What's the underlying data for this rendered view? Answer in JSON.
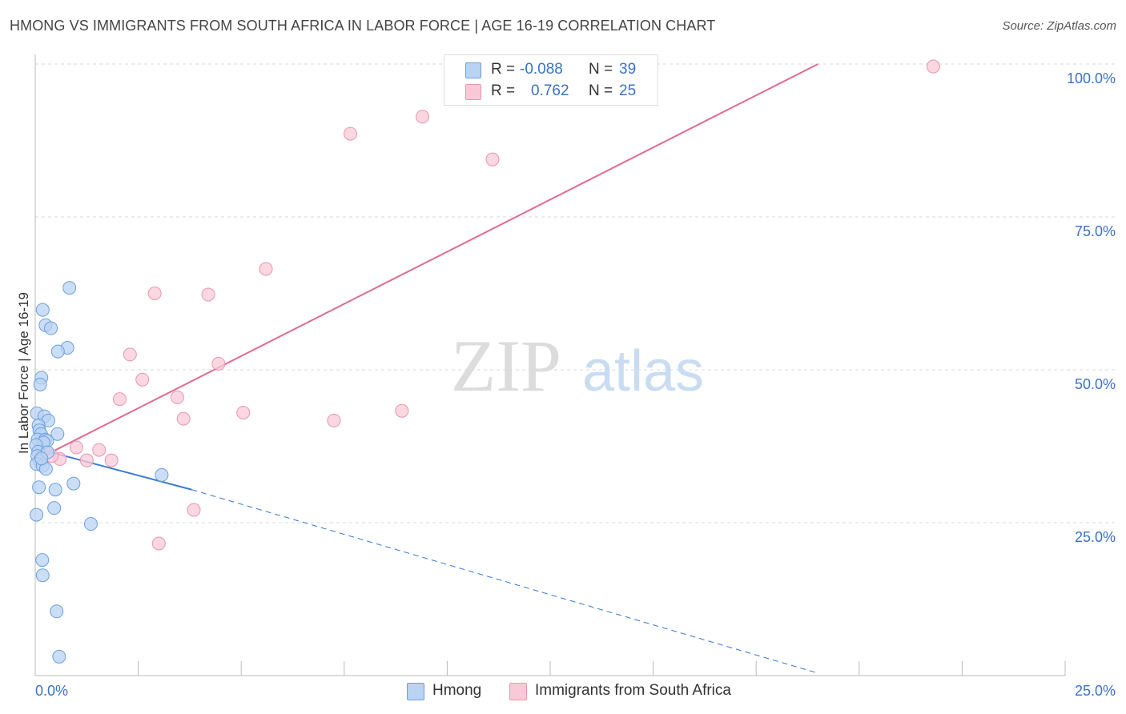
{
  "title": "HMONG VS IMMIGRANTS FROM SOUTH AFRICA IN LABOR FORCE | AGE 16-19 CORRELATION CHART",
  "source": "Source: ZipAtlas.com",
  "watermark": {
    "zip": "ZIP",
    "atlas": "atlas"
  },
  "colors": {
    "hmong_fill": "#b9d3f3",
    "hmong_stroke": "#6b9fdc",
    "hmong_line": "#3b7bd4",
    "sa_fill": "#f9c9d7",
    "sa_stroke": "#e995ae",
    "sa_line": "#e06a93",
    "axis_text": "#3a72c4",
    "grid": "#d9d9d9"
  },
  "legend": {
    "r_label": "R =",
    "n_label": "N =",
    "hmong": {
      "r": "-0.088",
      "n": "39"
    },
    "sa": {
      "r": "0.762",
      "n": "25"
    }
  },
  "chart_data": {
    "type": "scatter",
    "title": "HMONG VS IMMIGRANTS FROM SOUTH AFRICA IN LABOR FORCE | AGE 16-19 CORRELATION CHART",
    "xlabel": "",
    "ylabel": "In Labor Force | Age 16-19",
    "xlim": [
      0,
      25
    ],
    "ylim": [
      0,
      100
    ],
    "x_tick_labels": [
      "0.0%",
      "25.0%"
    ],
    "y_ticks": [
      25,
      50,
      75,
      100
    ],
    "y_tick_labels": [
      "25.0%",
      "50.0%",
      "75.0%",
      "100.0%"
    ],
    "grid": true,
    "series": [
      {
        "name": "Hmong",
        "r": -0.088,
        "n": 39,
        "points": [
          [
            0.83,
            63.4
          ],
          [
            0.18,
            59.8
          ],
          [
            0.25,
            57.3
          ],
          [
            0.38,
            56.8
          ],
          [
            0.78,
            53.6
          ],
          [
            0.55,
            53.0
          ],
          [
            0.15,
            48.7
          ],
          [
            0.12,
            47.6
          ],
          [
            0.04,
            42.9
          ],
          [
            0.22,
            42.4
          ],
          [
            0.32,
            41.7
          ],
          [
            0.08,
            40.9
          ],
          [
            0.1,
            40.1
          ],
          [
            0.14,
            39.5
          ],
          [
            0.54,
            39.5
          ],
          [
            0.06,
            38.6
          ],
          [
            0.24,
            38.6
          ],
          [
            0.29,
            38.4
          ],
          [
            0.2,
            38.1
          ],
          [
            0.02,
            37.7
          ],
          [
            0.07,
            36.6
          ],
          [
            0.05,
            35.9
          ],
          [
            0.11,
            35.1
          ],
          [
            0.03,
            34.6
          ],
          [
            0.18,
            34.3
          ],
          [
            0.26,
            33.8
          ],
          [
            3.07,
            32.8
          ],
          [
            0.93,
            31.4
          ],
          [
            0.09,
            30.8
          ],
          [
            0.49,
            30.4
          ],
          [
            0.46,
            27.4
          ],
          [
            0.03,
            26.3
          ],
          [
            1.35,
            24.8
          ],
          [
            0.17,
            18.9
          ],
          [
            0.18,
            16.4
          ],
          [
            0.52,
            10.5
          ],
          [
            0.58,
            3.1
          ],
          [
            0.3,
            36.5
          ],
          [
            0.15,
            35.5
          ]
        ],
        "trend_solid": [
          [
            0,
            37.2
          ],
          [
            3.8,
            30.4
          ]
        ],
        "trend_dashed": [
          [
            3.8,
            30.4
          ],
          [
            19.0,
            0.4
          ]
        ]
      },
      {
        "name": "Immigrants from South Africa",
        "r": 0.762,
        "n": 25,
        "points": [
          [
            21.8,
            99.6
          ],
          [
            9.4,
            91.4
          ],
          [
            7.65,
            88.6
          ],
          [
            11.1,
            84.4
          ],
          [
            5.6,
            66.5
          ],
          [
            2.9,
            62.5
          ],
          [
            4.2,
            62.3
          ],
          [
            2.3,
            52.5
          ],
          [
            4.45,
            51.0
          ],
          [
            2.6,
            48.4
          ],
          [
            2.05,
            45.2
          ],
          [
            3.45,
            45.5
          ],
          [
            5.05,
            43.0
          ],
          [
            8.9,
            43.3
          ],
          [
            3.6,
            42.0
          ],
          [
            7.25,
            41.7
          ],
          [
            1.0,
            37.3
          ],
          [
            1.55,
            36.9
          ],
          [
            0.6,
            35.4
          ],
          [
            1.25,
            35.2
          ],
          [
            1.85,
            35.2
          ],
          [
            0.4,
            35.9
          ],
          [
            3.85,
            27.1
          ],
          [
            3.0,
            21.6
          ],
          [
            0.2,
            36.8
          ]
        ],
        "trend_solid": [
          [
            0,
            35.2
          ],
          [
            19.0,
            100
          ]
        ]
      }
    ]
  },
  "bottom_legend": {
    "hmong": "Hmong",
    "sa": "Immigrants from South Africa"
  }
}
